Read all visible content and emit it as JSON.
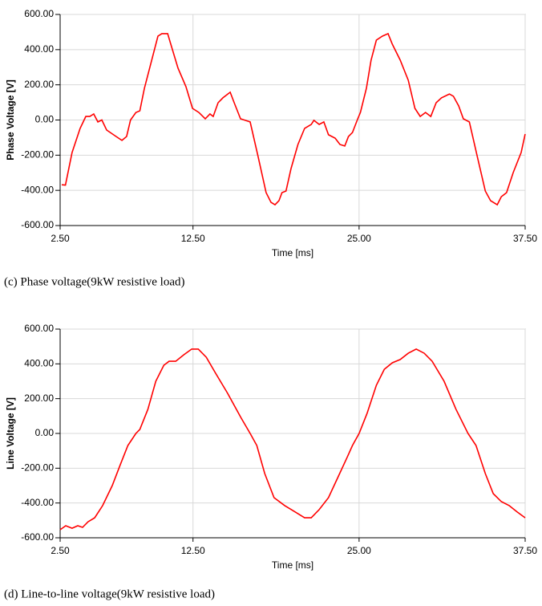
{
  "chart_data": [
    {
      "type": "line",
      "y_label": "Phase Voltage [V]",
      "x_label": "Time [ms]",
      "caption": "(c) Phase voltage(9kW resistive load)",
      "xlim": [
        2.5,
        37.5
      ],
      "xticks": [
        {
          "value": 2.5,
          "label": "2.50"
        },
        {
          "value": 12.5,
          "label": "12.50"
        },
        {
          "value": 25,
          "label": "25.00"
        },
        {
          "value": 37.5,
          "label": "37.50"
        }
      ],
      "ylim": [
        -600,
        600
      ],
      "yticks": [
        {
          "value": 600,
          "label": "600.00"
        },
        {
          "value": 400,
          "label": "400.00"
        },
        {
          "value": 200,
          "label": "200.00"
        },
        {
          "value": 0,
          "label": "0.00"
        },
        {
          "value": -200,
          "label": "-200.00"
        },
        {
          "value": -400,
          "label": "-400.00"
        },
        {
          "value": -600,
          "label": "-600.00"
        }
      ],
      "grid": true,
      "color": "#ff0000",
      "x": [
        2.62,
        2.9,
        3.4,
        4.0,
        4.43,
        4.73,
        5.03,
        5.34,
        5.64,
        6.0,
        6.72,
        7.15,
        7.5,
        7.8,
        8.2,
        8.5,
        8.84,
        9.44,
        9.86,
        10.16,
        10.59,
        10.83,
        11.37,
        11.97,
        12.46,
        12.94,
        13.42,
        13.78,
        14.02,
        14.39,
        14.75,
        15.3,
        15.6,
        16.08,
        16.8,
        17.4,
        18.0,
        18.37,
        18.67,
        18.97,
        19.2,
        19.5,
        19.88,
        20.4,
        20.9,
        21.4,
        21.6,
        22.0,
        22.35,
        22.7,
        23.2,
        23.56,
        23.92,
        24.2,
        24.5,
        24.9,
        25.1,
        25.55,
        25.9,
        26.3,
        26.76,
        27.18,
        27.5,
        28.1,
        28.7,
        29.2,
        29.6,
        30.0,
        30.4,
        30.8,
        31.2,
        31.8,
        32.1,
        32.5,
        32.85,
        33.3,
        33.9,
        34.5,
        34.9,
        35.4,
        35.7,
        36.1,
        36.6,
        37.2,
        37.5
      ],
      "values": [
        -368,
        -370,
        -185,
        -48,
        20,
        20,
        34,
        -11,
        0,
        -57,
        -94,
        -116,
        -94,
        0,
        43,
        52,
        180,
        354,
        477,
        491,
        491,
        431,
        295,
        190,
        66,
        43,
        7,
        34,
        20,
        98,
        126,
        158,
        98,
        7,
        -11,
        -208,
        -413,
        -468,
        -482,
        -459,
        -413,
        -404,
        -276,
        -139,
        -48,
        -25,
        -2,
        -25,
        -11,
        -84,
        -103,
        -139,
        -148,
        -94,
        -71,
        7,
        43,
        180,
        340,
        454,
        477,
        491,
        431,
        340,
        226,
        66,
        20,
        43,
        20,
        98,
        126,
        148,
        135,
        80,
        7,
        -11,
        -208,
        -404,
        -459,
        -482,
        -436,
        -413,
        -299,
        -185,
        -80
      ]
    },
    {
      "type": "line",
      "y_label": "Line Voltage [V]",
      "x_label": "Time [ms]",
      "caption": "(d) Line-to-line voltage(9kW resistive load)",
      "xlim": [
        2.5,
        37.5
      ],
      "xticks": [
        {
          "value": 2.5,
          "label": "2.50"
        },
        {
          "value": 12.5,
          "label": "12.50"
        },
        {
          "value": 25,
          "label": "25.00"
        },
        {
          "value": 37.5,
          "label": "37.50"
        }
      ],
      "ylim": [
        -600,
        600
      ],
      "yticks": [
        {
          "value": 600,
          "label": "600.00"
        },
        {
          "value": 400,
          "label": "400.00"
        },
        {
          "value": 200,
          "label": "200.00"
        },
        {
          "value": 0,
          "label": "0.00"
        },
        {
          "value": -200,
          "label": "-200.00"
        },
        {
          "value": -400,
          "label": "-400.00"
        },
        {
          "value": -600,
          "label": "-600.00"
        }
      ],
      "grid": true,
      "color": "#ff0000",
      "x": [
        2.5,
        2.92,
        3.4,
        3.83,
        4.19,
        4.6,
        5.1,
        5.7,
        6.42,
        7.0,
        7.6,
        8.2,
        8.5,
        9.1,
        9.7,
        10.3,
        10.7,
        11.2,
        11.8,
        12.4,
        12.9,
        13.5,
        14.2,
        15.1,
        16.1,
        16.8,
        17.3,
        17.9,
        18.6,
        19.4,
        20.2,
        20.9,
        21.4,
        22.0,
        22.7,
        23.4,
        24.1,
        24.5,
        25.0,
        25.6,
        26.3,
        26.9,
        27.5,
        28.1,
        28.7,
        29.3,
        29.9,
        30.5,
        31.4,
        32.3,
        33.2,
        33.8,
        34.5,
        35.1,
        35.7,
        36.3,
        36.9,
        37.5
      ],
      "values": [
        -554,
        -531,
        -545,
        -531,
        -540,
        -508,
        -485,
        -415,
        -300,
        -185,
        -69,
        0,
        23,
        138,
        300,
        392,
        415,
        415,
        452,
        485,
        485,
        438,
        346,
        231,
        92,
        0,
        -69,
        -231,
        -369,
        -415,
        -452,
        -485,
        -485,
        -438,
        -369,
        -254,
        -138,
        -69,
        0,
        115,
        277,
        369,
        406,
        425,
        461,
        485,
        461,
        415,
        300,
        138,
        0,
        -69,
        -231,
        -346,
        -392,
        -415,
        -452,
        -485
      ]
    }
  ]
}
